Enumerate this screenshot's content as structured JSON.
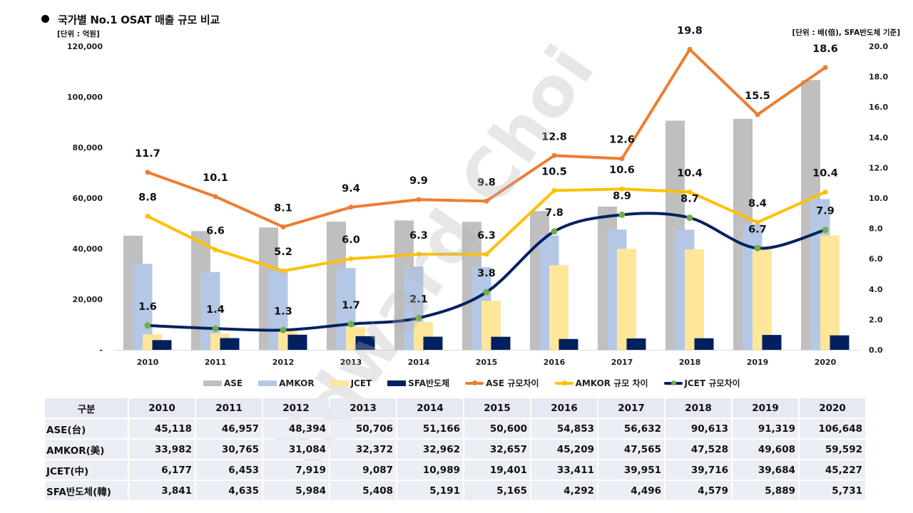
{
  "header": {
    "title": "국가별 No.1 OSAT 매출 규모 비교",
    "unit_left": "[단위 : 억원]",
    "unit_right": "[단위 : 배(倍), SFA반도체 기준]"
  },
  "watermark": "Edward Choi",
  "colors": {
    "ASE": "#bfbfbf",
    "AMKOR": "#b4c7e7",
    "JCET": "#ffe699",
    "SFA": "#002060",
    "ASE_gap": "#ed7d31",
    "AMKOR_gap": "#ffc000",
    "JCET_gap": "#002060",
    "JCET_gap_marker": "#70ad47",
    "table_header_bg": "#e6e8f2",
    "table_cell_bg": "#eceef6"
  },
  "chart_data": {
    "type": "bar+line",
    "title": "국가별 No.1 OSAT 매출 규모 비교",
    "categories": [
      "2010",
      "2011",
      "2012",
      "2013",
      "2014",
      "2015",
      "2016",
      "2017",
      "2018",
      "2019",
      "2020"
    ],
    "y_left": {
      "label": "[단위 : 억원]",
      "range": [
        0,
        120000
      ],
      "ticks": [
        "-",
        "20,000",
        "40,000",
        "60,000",
        "80,000",
        "100,000",
        "120,000"
      ],
      "tick_values": [
        0,
        20000,
        40000,
        60000,
        80000,
        100000,
        120000
      ]
    },
    "y_right": {
      "label": "[단위 : 배(倍), SFA반도체 기준]",
      "range": [
        0,
        20
      ],
      "ticks": [
        "0.0",
        "2.0",
        "4.0",
        "6.0",
        "8.0",
        "10.0",
        "12.0",
        "14.0",
        "16.0",
        "18.0",
        "20.0"
      ],
      "tick_values": [
        0,
        2,
        4,
        6,
        8,
        10,
        12,
        14,
        16,
        18,
        20
      ]
    },
    "bar_series": [
      {
        "name": "ASE",
        "color": "#bfbfbf",
        "values": [
          45118,
          46957,
          48394,
          50706,
          51166,
          50600,
          54853,
          56632,
          90613,
          91319,
          106648
        ]
      },
      {
        "name": "AMKOR",
        "color": "#b4c7e7",
        "values": [
          33982,
          30765,
          31084,
          32372,
          32962,
          32657,
          45209,
          47565,
          47528,
          49608,
          59592
        ]
      },
      {
        "name": "JCET",
        "color": "#ffe699",
        "values": [
          6177,
          6453,
          7919,
          9087,
          10989,
          19401,
          33411,
          39951,
          39716,
          39684,
          45227
        ]
      },
      {
        "name": "SFA반도체",
        "color": "#002060",
        "values": [
          3841,
          4635,
          5984,
          5408,
          5191,
          5165,
          4292,
          4496,
          4579,
          5889,
          5731
        ]
      }
    ],
    "line_series": [
      {
        "name": "ASE 규모차이",
        "color": "#ed7d31",
        "axis": "right",
        "values": [
          11.7,
          10.1,
          8.1,
          9.4,
          9.9,
          9.8,
          12.8,
          12.6,
          19.8,
          15.5,
          18.6
        ],
        "labels": [
          "11.7",
          "10.1",
          "8.1",
          "9.4",
          "9.9",
          "9.8",
          "12.8",
          "12.6",
          "19.8",
          "15.5",
          "18.6"
        ]
      },
      {
        "name": "AMKOR 규모 차이",
        "color": "#ffc000",
        "axis": "right",
        "values": [
          8.8,
          6.6,
          5.2,
          6.0,
          6.3,
          6.3,
          10.5,
          10.6,
          10.4,
          8.4,
          10.4
        ],
        "labels": [
          "8.8",
          "6.6",
          "5.2",
          "6.0",
          "6.3",
          "6.3",
          "10.5",
          "10.6",
          "10.4",
          "8.4",
          "10.4"
        ]
      },
      {
        "name": "JCET 규모차이",
        "color": "#002060",
        "marker": "#70ad47",
        "axis": "right",
        "smooth": true,
        "values": [
          1.6,
          1.4,
          1.3,
          1.7,
          2.1,
          3.8,
          7.8,
          8.9,
          8.7,
          6.7,
          7.9
        ],
        "labels": [
          "1.6",
          "1.4",
          "1.3",
          "1.7",
          "2.1",
          "3.8",
          "7.8",
          "8.9",
          "8.7",
          "6.7",
          "7.9"
        ]
      }
    ],
    "legend": [
      "ASE",
      "AMKOR",
      "JCET",
      "SFA반도체",
      "ASE 규모차이",
      "AMKOR 규모 차이",
      "JCET 규모차이"
    ],
    "legend_position": "bottom",
    "grid": false
  },
  "table": {
    "header": [
      "구분",
      "2010",
      "2011",
      "2012",
      "2013",
      "2014",
      "2015",
      "2016",
      "2017",
      "2018",
      "2019",
      "2020"
    ],
    "rows": [
      {
        "label": "ASE(台)",
        "values": [
          "45,118",
          "46,957",
          "48,394",
          "50,706",
          "51,166",
          "50,600",
          "54,853",
          "56,632",
          "90,613",
          "91,319",
          "106,648"
        ]
      },
      {
        "label": "AMKOR(美)",
        "values": [
          "33,982",
          "30,765",
          "31,084",
          "32,372",
          "32,962",
          "32,657",
          "45,209",
          "47,565",
          "47,528",
          "49,608",
          "59,592"
        ]
      },
      {
        "label": "JCET(中)",
        "values": [
          "6,177",
          "6,453",
          "7,919",
          "9,087",
          "10,989",
          "19,401",
          "33,411",
          "39,951",
          "39,716",
          "39,684",
          "45,227"
        ]
      },
      {
        "label": "SFA반도체(韓)",
        "values": [
          "3,841",
          "4,635",
          "5,984",
          "5,408",
          "5,191",
          "5,165",
          "4,292",
          "4,496",
          "4,579",
          "5,889",
          "5,731"
        ]
      }
    ]
  }
}
